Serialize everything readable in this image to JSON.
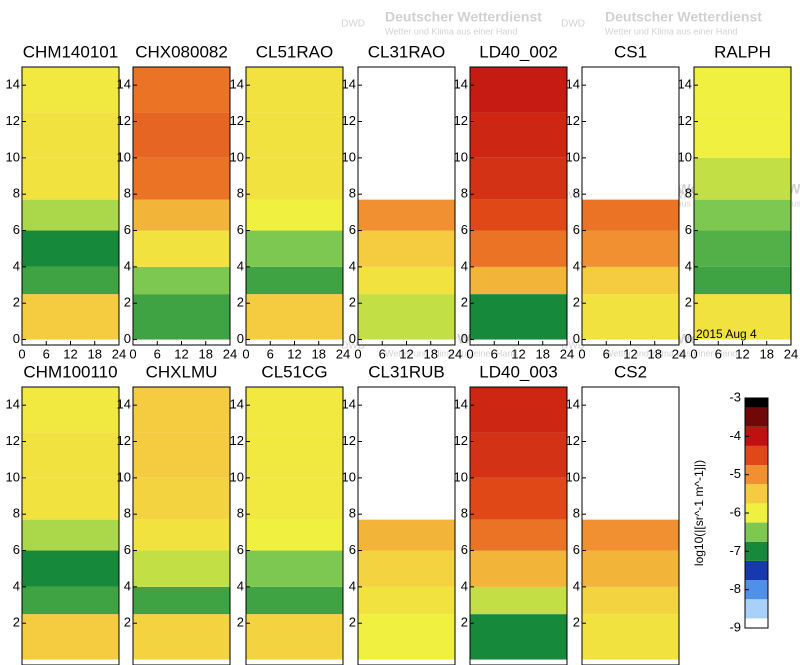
{
  "watermark": {
    "title": "Deutscher Wetterdienst",
    "subtitle": "Wetter und Klima aus einer Hand",
    "logo": "DWD"
  },
  "chart_data": [
    {
      "type": "heatmap",
      "title": "CHM140101",
      "xlim": [
        0,
        24
      ],
      "xticks": [
        0,
        6,
        12,
        18,
        24
      ],
      "ylim": [
        -0.3,
        15
      ],
      "yticks": [
        0,
        2,
        4,
        6,
        8,
        10,
        12,
        14
      ],
      "y_bins": [
        0,
        2.5,
        4,
        6,
        7.7,
        10,
        12.5,
        15
      ],
      "values": [
        -5.5,
        -6.8,
        -7,
        -6.3,
        -5.8,
        -5.8,
        -5.9
      ]
    },
    {
      "type": "heatmap",
      "title": "CHX080082",
      "xlim": [
        0,
        24
      ],
      "xticks": [
        0,
        6,
        12,
        18,
        24
      ],
      "ylim": [
        -0.3,
        15
      ],
      "yticks": [
        0,
        2,
        4,
        6,
        8,
        10,
        12,
        14
      ],
      "y_bins": [
        0,
        2.5,
        4,
        6,
        7.7,
        10,
        12.5,
        15
      ],
      "values": [
        -6.8,
        -6.5,
        -5.8,
        -5.3,
        -4.8,
        -4.7,
        -4.8
      ]
    },
    {
      "type": "heatmap",
      "title": "CL51RAO",
      "xlim": [
        0,
        24
      ],
      "xticks": [
        0,
        6,
        12,
        18,
        24
      ],
      "ylim": [
        -0.3,
        15
      ],
      "yticks": [
        0,
        2,
        4,
        6,
        8,
        10,
        12,
        14
      ],
      "y_bins": [
        0,
        2.5,
        4,
        6,
        7.7,
        10,
        12.5,
        15
      ],
      "values": [
        -5.5,
        -6.8,
        -6.5,
        -6,
        -5.8,
        -5.8,
        -5.8
      ]
    },
    {
      "type": "heatmap",
      "title": "CL31RAO",
      "xlim": [
        0,
        24
      ],
      "xticks": [
        0,
        6,
        12,
        18,
        24
      ],
      "ylim": [
        -0.3,
        15
      ],
      "yticks": [
        0,
        2,
        4,
        6,
        8,
        10,
        12,
        14
      ],
      "y_bins": [
        0,
        2.5,
        4,
        6,
        7.7,
        10,
        12.5,
        15
      ],
      "values": [
        -6.2,
        -5.8,
        -5.5,
        -5,
        null,
        null,
        null
      ]
    },
    {
      "type": "heatmap",
      "title": "LD40_002",
      "xlim": [
        0,
        24
      ],
      "xticks": [
        0,
        6,
        12,
        18,
        24
      ],
      "ylim": [
        -0.3,
        15
      ],
      "yticks": [
        0,
        2,
        4,
        6,
        8,
        10,
        12,
        14
      ],
      "y_bins": [
        0,
        2.5,
        4,
        6,
        7.7,
        10,
        12.5,
        15
      ],
      "values": [
        -7,
        -5.3,
        -4.8,
        -4.5,
        -4.3,
        -4.2,
        -4.1
      ]
    },
    {
      "type": "heatmap",
      "title": "CS1",
      "xlim": [
        0,
        24
      ],
      "xticks": [
        0,
        6,
        12,
        18,
        24
      ],
      "ylim": [
        -0.3,
        15
      ],
      "yticks": [
        0,
        2,
        4,
        6,
        8,
        10,
        12,
        14
      ],
      "y_bins": [
        0,
        2.5,
        4,
        6,
        7.7,
        10,
        12.5,
        15
      ],
      "values": [
        -5.8,
        -5.5,
        -5,
        -4.8,
        null,
        null,
        null
      ]
    },
    {
      "type": "heatmap",
      "title": "RALPH",
      "annotation": "2015 Aug  4",
      "xlim": [
        0,
        24
      ],
      "xticks": [
        0,
        6,
        12,
        18,
        24
      ],
      "ylim": [
        -0.3,
        15
      ],
      "yticks": [
        0,
        2,
        4,
        6,
        8,
        10,
        12,
        14
      ],
      "y_bins": [
        0,
        2.5,
        4,
        6,
        7.7,
        10,
        12.5,
        15
      ],
      "values": [
        -5.8,
        -6.8,
        -6.7,
        -6.5,
        -6.2,
        -6,
        -6
      ]
    },
    {
      "type": "heatmap",
      "title": "CHM100110",
      "xlim": [
        0,
        24
      ],
      "ylim": [
        -0.3,
        15
      ],
      "yticks": [
        2,
        4,
        6,
        8,
        10,
        12,
        14
      ],
      "y_bins": [
        0,
        2.5,
        4,
        6,
        7.7,
        10,
        12.5,
        15
      ],
      "values": [
        -5.5,
        -6.8,
        -7,
        -6.3,
        -5.8,
        -5.8,
        -5.9
      ]
    },
    {
      "type": "heatmap",
      "title": "CHXLMU",
      "xlim": [
        0,
        24
      ],
      "ylim": [
        -0.3,
        15
      ],
      "yticks": [
        2,
        4,
        6,
        8,
        10,
        12,
        14
      ],
      "y_bins": [
        0,
        2.5,
        4,
        6,
        7.7,
        10,
        12.5,
        15
      ],
      "values": [
        -5.6,
        -6.8,
        -6.2,
        -5.8,
        -5.6,
        -5.5,
        -5.5
      ]
    },
    {
      "type": "heatmap",
      "title": "CL51CG",
      "xlim": [
        0,
        24
      ],
      "ylim": [
        -0.3,
        15
      ],
      "yticks": [
        2,
        4,
        6,
        8,
        10,
        12,
        14
      ],
      "y_bins": [
        0,
        2.5,
        4,
        6,
        7.7,
        10,
        12.5,
        15
      ],
      "values": [
        -5.6,
        -6.8,
        -6.5,
        -6,
        -5.9,
        -5.9,
        -5.9
      ]
    },
    {
      "type": "heatmap",
      "title": "CL31RUB",
      "xlim": [
        0,
        24
      ],
      "ylim": [
        -0.3,
        15
      ],
      "yticks": [
        2,
        4,
        6,
        8,
        10,
        12,
        14
      ],
      "y_bins": [
        0,
        2.5,
        4,
        6,
        7.7,
        10,
        12.5,
        15
      ],
      "values": [
        -6,
        -5.8,
        -5.6,
        -5.3,
        null,
        null,
        null
      ]
    },
    {
      "type": "heatmap",
      "title": "LD40_003",
      "xlim": [
        0,
        24
      ],
      "ylim": [
        -0.3,
        15
      ],
      "yticks": [
        2,
        4,
        6,
        8,
        10,
        12,
        14
      ],
      "y_bins": [
        0,
        2.5,
        4,
        6,
        7.7,
        10,
        12.5,
        15
      ],
      "values": [
        -7,
        -6.2,
        -5.3,
        -4.8,
        -4.5,
        -4.3,
        -4.2
      ]
    },
    {
      "type": "heatmap",
      "title": "CS2",
      "xlim": [
        0,
        24
      ],
      "ylim": [
        -0.3,
        15
      ],
      "yticks": [
        2,
        4,
        6,
        8,
        10,
        12,
        14
      ],
      "y_bins": [
        0,
        2.5,
        4,
        6,
        7.7,
        10,
        12.5,
        15
      ],
      "values": [
        -5.8,
        -5.6,
        -5.3,
        -5,
        null,
        null,
        null
      ]
    },
    {
      "type": "colorbar",
      "label": "log10(|[sr^-1 m^-1]|)",
      "ylim": [
        -9,
        -3
      ],
      "yticks": [
        -3,
        -4,
        -5,
        -6,
        -7,
        -8,
        -9
      ],
      "colormap": [
        {
          "value": -9,
          "color": "#ffffff"
        },
        {
          "value": -8.5,
          "color": "#a8d0f8"
        },
        {
          "value": -8,
          "color": "#5090e8"
        },
        {
          "value": -7.5,
          "color": "#1838b0"
        },
        {
          "value": -7,
          "color": "#168a3a"
        },
        {
          "value": -6.5,
          "color": "#7cc850"
        },
        {
          "value": -6,
          "color": "#f0f040"
        },
        {
          "value": -5.5,
          "color": "#f5cc40"
        },
        {
          "value": -5,
          "color": "#f09030"
        },
        {
          "value": -4.5,
          "color": "#e04818"
        },
        {
          "value": -4,
          "color": "#c01010"
        },
        {
          "value": -3.5,
          "color": "#700808"
        },
        {
          "value": -3,
          "color": "#000000"
        }
      ]
    }
  ]
}
